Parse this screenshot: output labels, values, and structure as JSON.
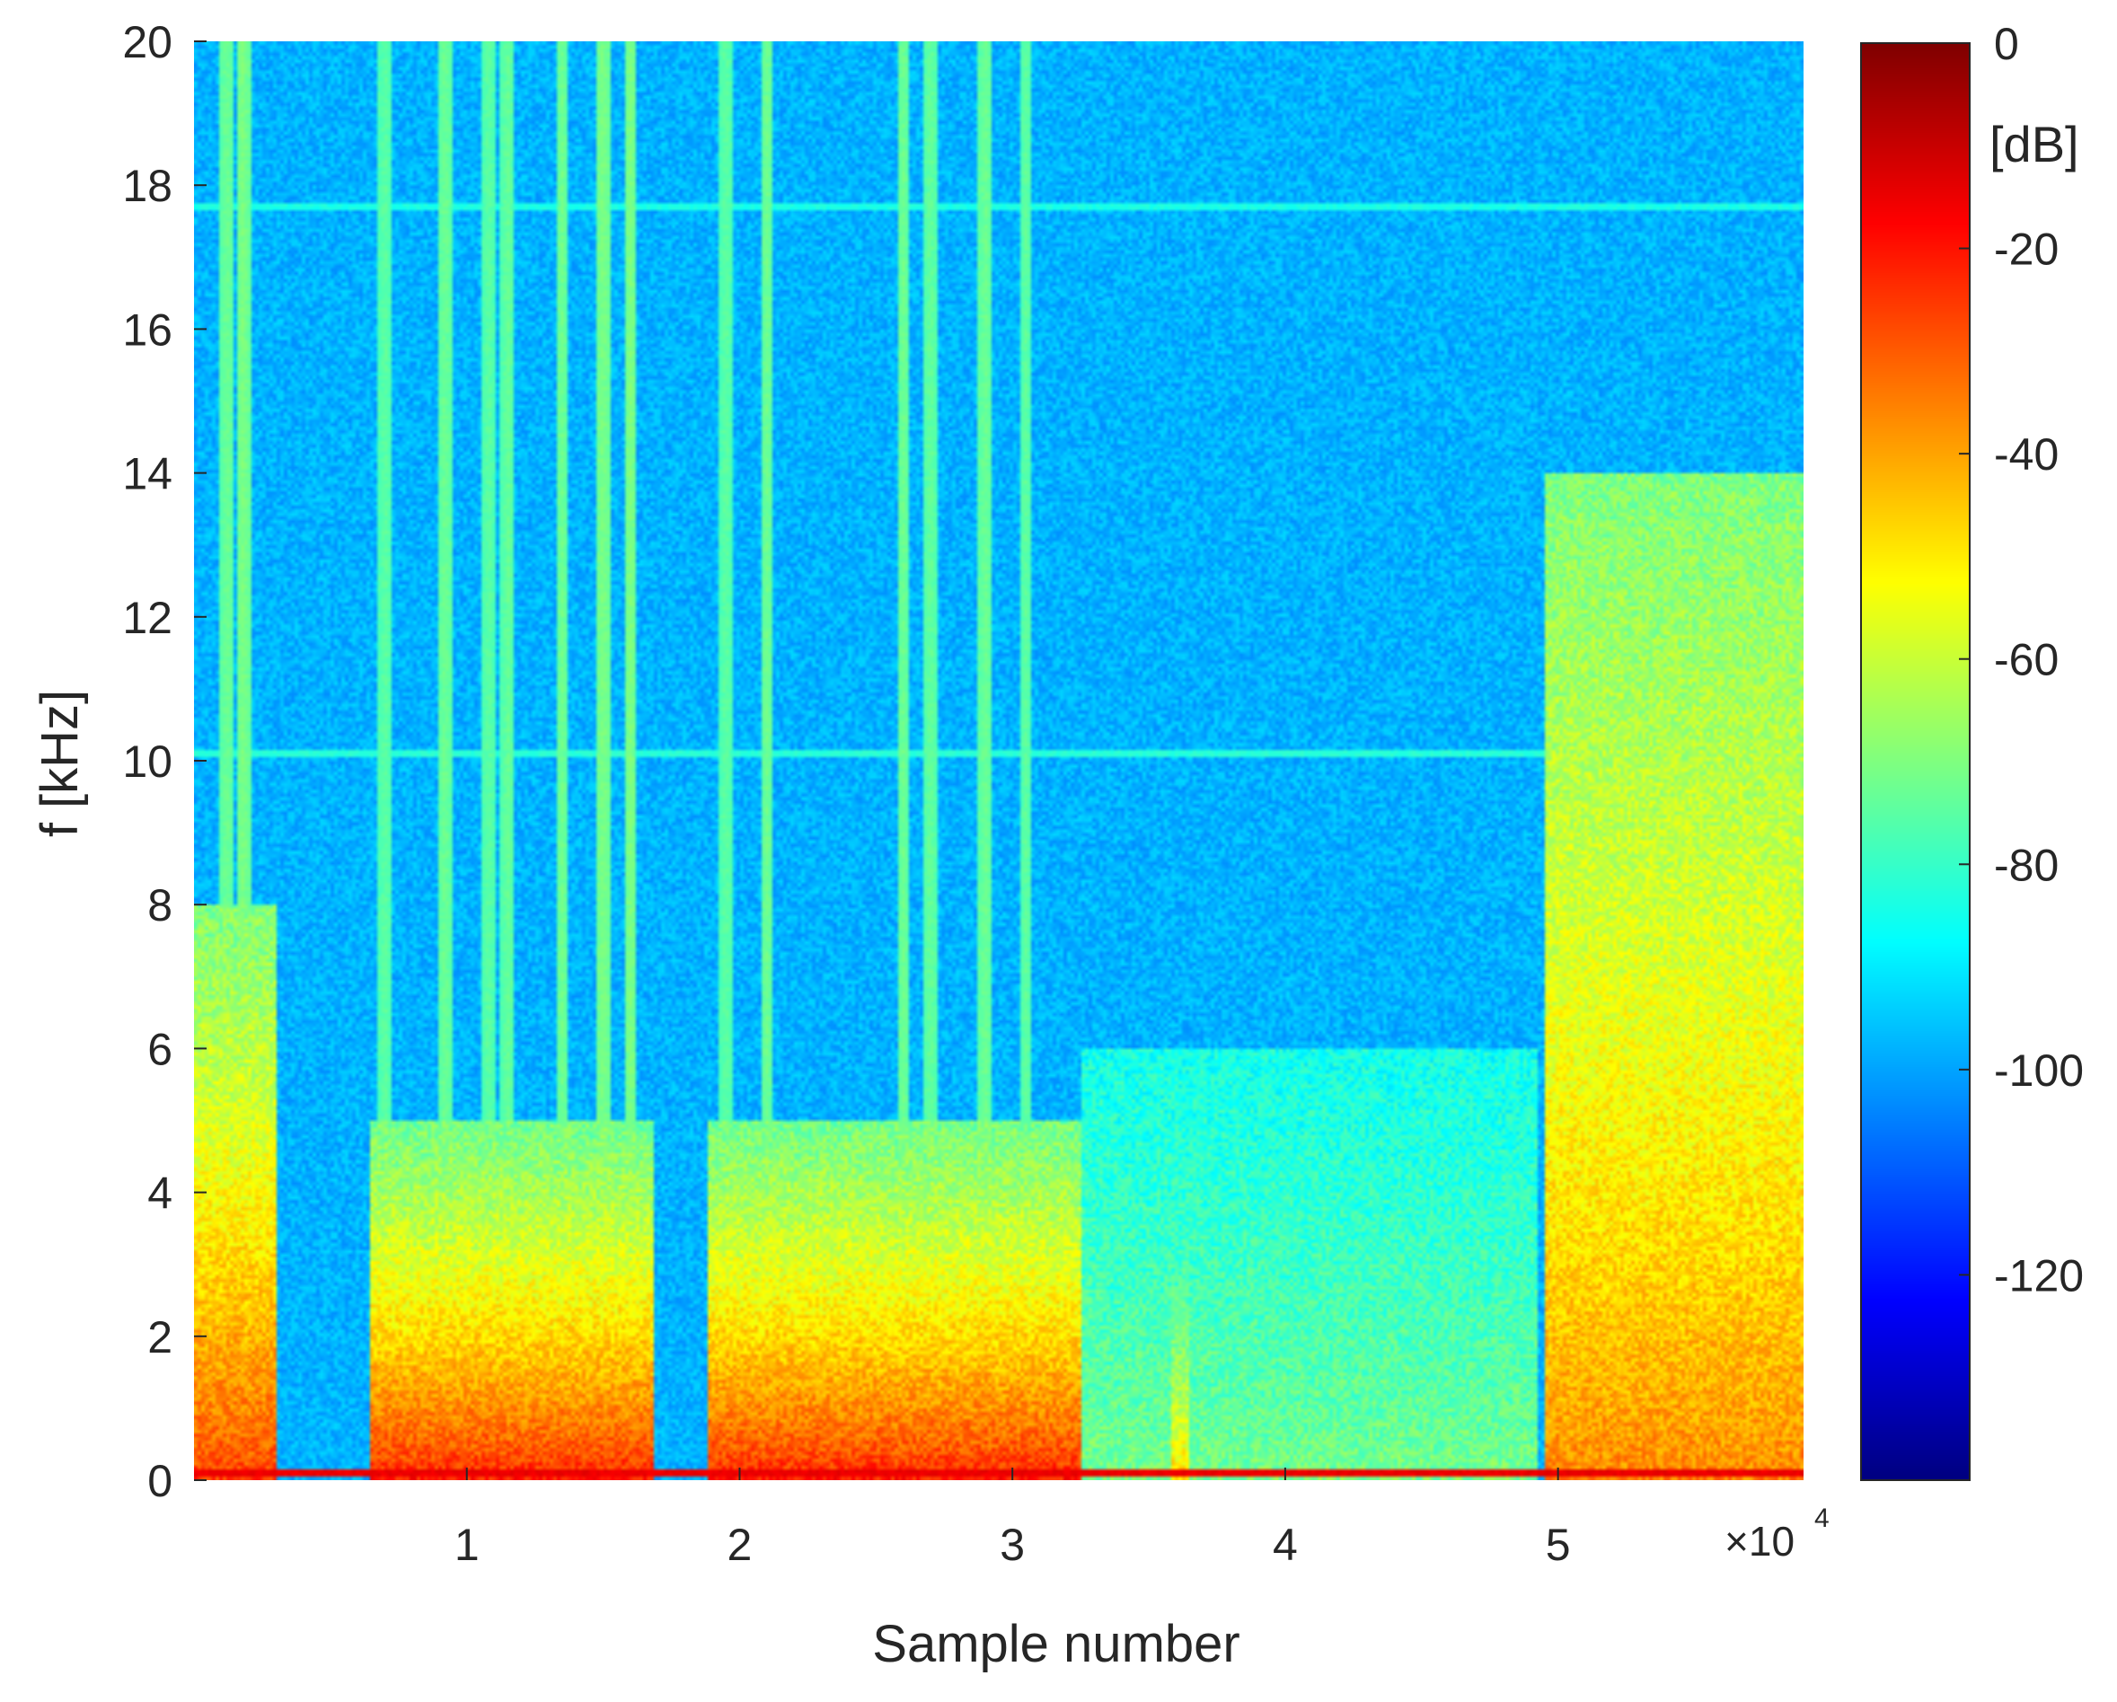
{
  "chart_data": {
    "type": "heatmap",
    "title": "",
    "xlabel": "Sample number",
    "ylabel": "f [kHz]",
    "x_exponent_label": "×10",
    "x_exponent_power": "4",
    "xlim": [
      0,
      59000
    ],
    "ylim": [
      0,
      20
    ],
    "x_ticks": [
      10000,
      20000,
      30000,
      40000,
      50000
    ],
    "x_tick_labels": [
      "1",
      "2",
      "3",
      "4",
      "5"
    ],
    "y_ticks": [
      0,
      2,
      4,
      6,
      8,
      10,
      12,
      14,
      16,
      18,
      20
    ],
    "y_tick_labels": [
      "0",
      "2",
      "4",
      "6",
      "8",
      "10",
      "12",
      "14",
      "16",
      "18",
      "20"
    ],
    "colorbar": {
      "label": "[dB]",
      "clim": [
        -140,
        0
      ],
      "ticks": [
        0,
        -20,
        -40,
        -60,
        -80,
        -100,
        -120
      ],
      "tick_labels": [
        "0",
        "-20",
        "-40",
        "-60",
        "-80",
        "-100",
        "-120"
      ],
      "colormap": "jet"
    },
    "background_level_db": -98,
    "tone_lines": [
      {
        "freq_khz": 0.1,
        "level_db": -15
      },
      {
        "freq_khz": 10.1,
        "level_db": -82
      },
      {
        "freq_khz": 17.7,
        "level_db": -84
      }
    ],
    "events": [
      {
        "x_start": 0,
        "x_end": 3000,
        "low_db": -25,
        "high_db": -70,
        "top_khz": 8
      },
      {
        "x_start": 6500,
        "x_end": 16800,
        "low_db": -20,
        "high_db": -72,
        "top_khz": 5
      },
      {
        "x_start": 18800,
        "x_end": 32500,
        "low_db": -20,
        "high_db": -72,
        "top_khz": 5
      },
      {
        "x_start": 35800,
        "x_end": 36500,
        "low_db": -45,
        "high_db": -80,
        "top_khz": 3
      },
      {
        "x_start": 32500,
        "x_end": 49200,
        "low_db": -70,
        "high_db": -85,
        "top_khz": 6
      },
      {
        "x_start": 49500,
        "x_end": 59000,
        "low_db": -35,
        "high_db": -70,
        "top_khz": 14
      }
    ],
    "vertical_streaks": [
      {
        "x": 1200,
        "level_db": -72
      },
      {
        "x": 1800,
        "level_db": -70
      },
      {
        "x": 7000,
        "level_db": -74
      },
      {
        "x": 9200,
        "level_db": -72
      },
      {
        "x": 10800,
        "level_db": -74
      },
      {
        "x": 11500,
        "level_db": -73
      },
      {
        "x": 13500,
        "level_db": -72
      },
      {
        "x": 15000,
        "level_db": -70
      },
      {
        "x": 16000,
        "level_db": -70
      },
      {
        "x": 19500,
        "level_db": -74
      },
      {
        "x": 21000,
        "level_db": -72
      },
      {
        "x": 26000,
        "level_db": -72
      },
      {
        "x": 27000,
        "level_db": -73
      },
      {
        "x": 29000,
        "level_db": -72
      },
      {
        "x": 30500,
        "level_db": -74
      }
    ]
  }
}
